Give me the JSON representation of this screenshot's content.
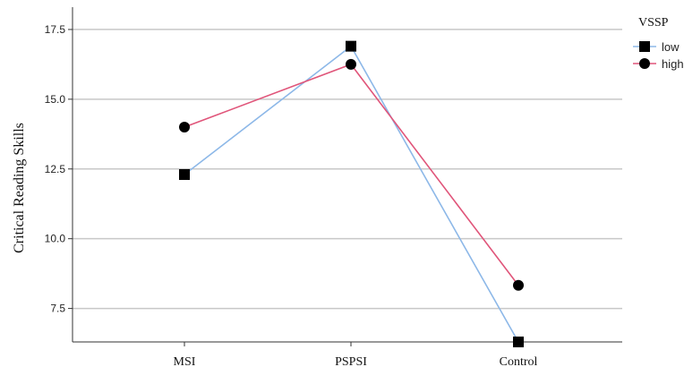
{
  "chart_data": {
    "type": "line",
    "categories": [
      "MSI",
      "PSPSI",
      "Control"
    ],
    "xlabel": "",
    "ylabel": "Critical Reading Skills",
    "ylim": [
      6.3,
      18.3
    ],
    "yticks": [
      "7.5",
      "10.0",
      "12.5",
      "15.0",
      "17.5"
    ],
    "grid": true,
    "legend": {
      "title": "VSSP",
      "position": "top-right"
    },
    "series": [
      {
        "name": "low",
        "marker": "square",
        "color": "#8db8e8",
        "values": [
          12.3,
          16.9,
          6.3
        ]
      },
      {
        "name": "high",
        "marker": "circle",
        "color": "#e0557a",
        "values": [
          14.0,
          16.25,
          8.33
        ]
      }
    ]
  }
}
